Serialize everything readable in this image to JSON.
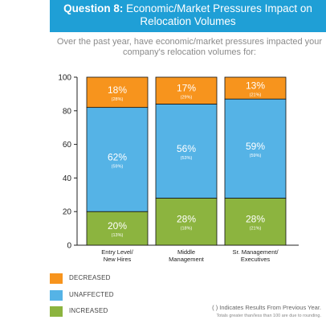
{
  "header": {
    "question_number": "Question 8:",
    "title_line1": " Economic/Market Pressures Impact on",
    "title_line2": "Relocation Volumes"
  },
  "question_text": "Over the past year, have economic/market pressures impacted your company's relocation volumes for:",
  "colors": {
    "decreased": "#f7941d",
    "unaffected": "#55b3e6",
    "increased": "#8cb43f",
    "banner": "#1f9fd6"
  },
  "chart_data": {
    "type": "bar",
    "stacked": true,
    "categories": [
      [
        "Entry Level/",
        "New Hires"
      ],
      [
        "Middle",
        "Management"
      ],
      [
        "Sr. Management/",
        "Executives"
      ]
    ],
    "series": [
      {
        "name": "INCREASED",
        "values": [
          20,
          28,
          28
        ],
        "labels": [
          "20%",
          "28%",
          "28%"
        ],
        "previous": [
          "(13%)",
          "(18%)",
          "(21%)"
        ]
      },
      {
        "name": "UNAFFECTED",
        "values": [
          62,
          56,
          59
        ],
        "labels": [
          "62%",
          "56%",
          "59%"
        ],
        "previous": [
          "(59%)",
          "(53%)",
          "(59%)"
        ]
      },
      {
        "name": "DECREASED",
        "values": [
          18,
          17,
          13
        ],
        "labels": [
          "18%",
          "17%",
          "13%"
        ],
        "previous": [
          "(28%)",
          "(29%)",
          "(21%)"
        ]
      }
    ],
    "yticks": [
      "0",
      "20",
      "40",
      "60",
      "80",
      "100"
    ],
    "ylim": [
      0,
      100
    ],
    "grid": false,
    "legend_position": "bottom-left"
  },
  "legend": [
    {
      "label": "DECREASED",
      "color_key": "decreased"
    },
    {
      "label": "UNAFFECTED",
      "color_key": "unaffected"
    },
    {
      "label": "INCREASED",
      "color_key": "increased"
    }
  ],
  "footnote": {
    "main": "( ) Indicates Results From Previous Year.",
    "small": "Totals greater than/less than 100 are due to rounding."
  }
}
